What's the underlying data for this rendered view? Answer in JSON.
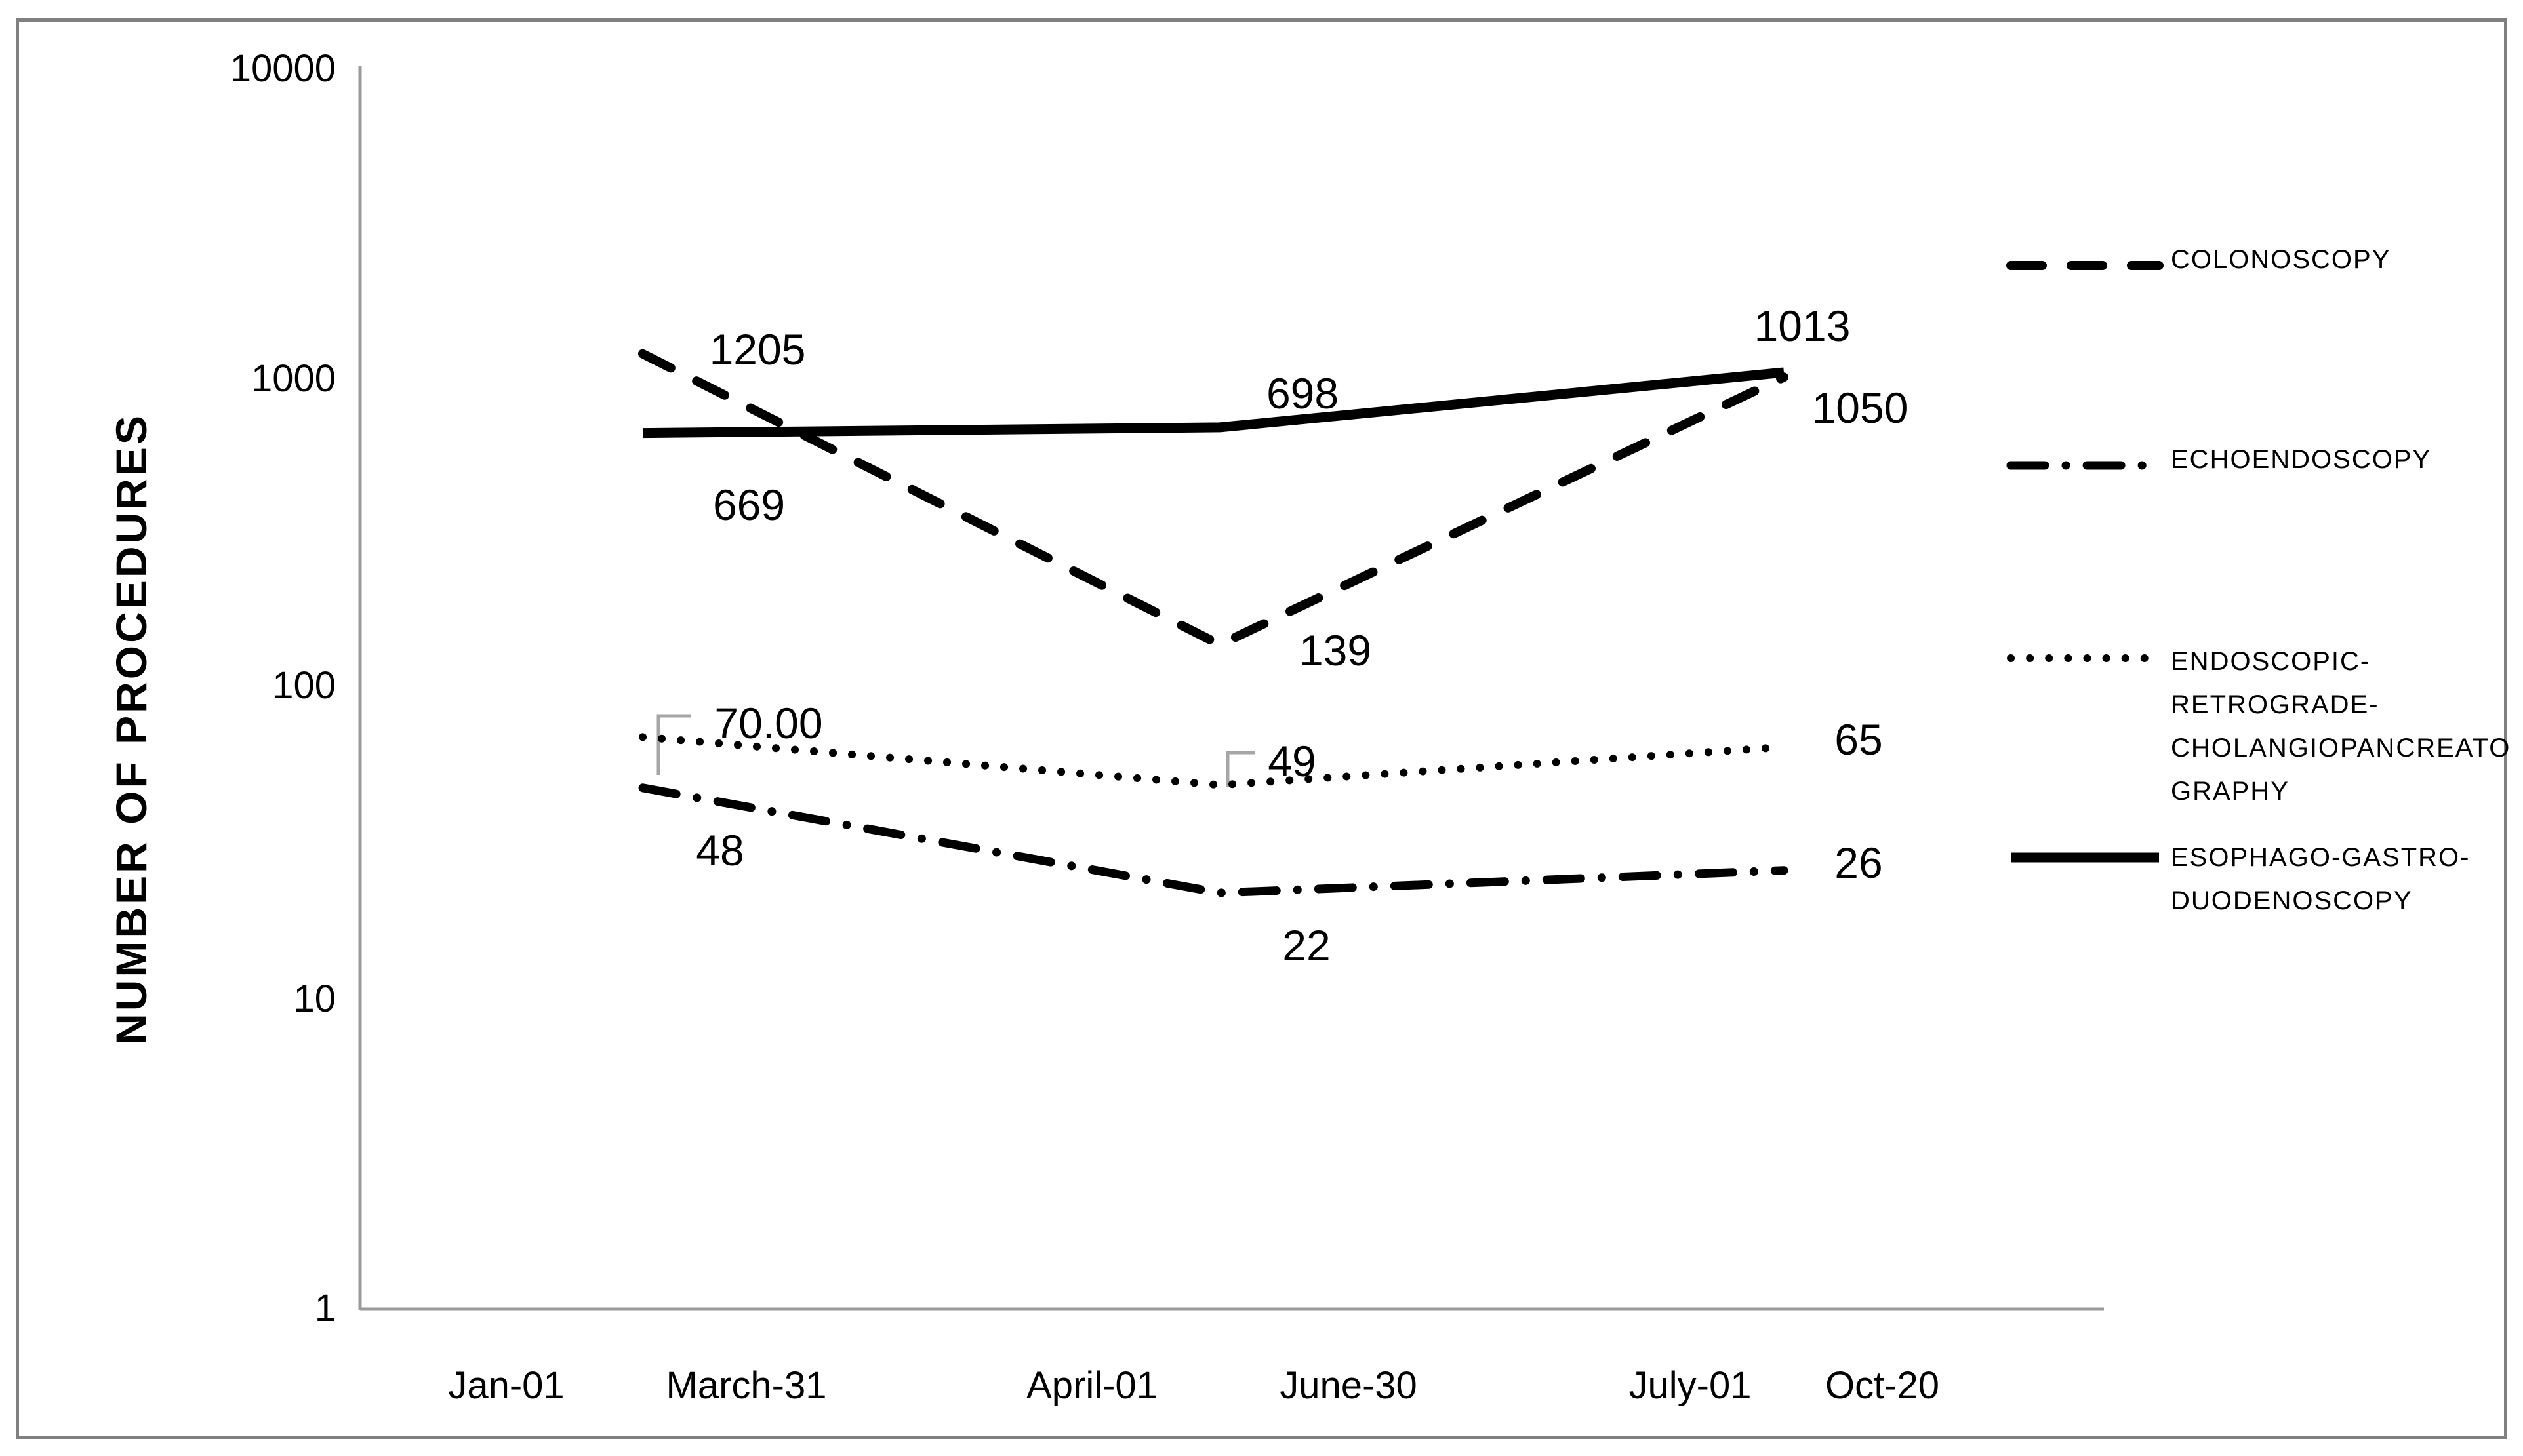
{
  "figure": {
    "background": "#ffffff",
    "frame_color": "#808080",
    "axis_color": "#9a9a9a",
    "series_color": "#000000",
    "leader_color": "#a6a6a6"
  },
  "chart_data": {
    "type": "line",
    "title": "",
    "xlabel": "",
    "ylabel": "NUMBER OF PROCEDURES",
    "y_scale": "log10",
    "ylim": [
      1,
      10000
    ],
    "y_ticks": [
      "10000",
      "1000",
      "100",
      "10",
      "1"
    ],
    "x_labels": [
      "Jan-01",
      "March-31",
      "April-01",
      "June-30",
      "July-01",
      "Oct-20"
    ],
    "grid": "off",
    "legend_position": "right",
    "series": [
      {
        "name": "COLONOSCOPY",
        "line_style": "dashed",
        "values": [
          1205,
          139,
          1013
        ],
        "data_labels": [
          "1205",
          "139",
          "1013"
        ]
      },
      {
        "name": "ECHOENDOSCOPY",
        "line_style": "dash-dot",
        "values": [
          48,
          22,
          26
        ],
        "data_labels": [
          "48",
          "22",
          "26"
        ]
      },
      {
        "name": "ENDOSCOPIC-RETROGRADE-CHOLANGIOPANCREATOGRAPHY",
        "line_style": "dotted",
        "values": [
          70,
          49,
          65
        ],
        "data_labels": [
          "70.00",
          "49",
          "65"
        ]
      },
      {
        "name": "ESOPHAGO-GASTRO-DUODENOSCOPY",
        "line_style": "solid",
        "values": [
          669,
          698,
          1050
        ],
        "data_labels": [
          "669",
          "698",
          "1050"
        ]
      }
    ],
    "legend": {
      "items": [
        {
          "lines": [
            "COLONOSCOPY"
          ]
        },
        {
          "lines": [
            "ECHOENDOSCOPY"
          ]
        },
        {
          "lines": [
            "ENDOSCOPIC-",
            "RETROGRADE-",
            "CHOLANGIOPANCREATO",
            "GRAPHY"
          ]
        },
        {
          "lines": [
            "ESOPHAGO-GASTRO-",
            "DUODENOSCOPY"
          ]
        }
      ]
    }
  }
}
